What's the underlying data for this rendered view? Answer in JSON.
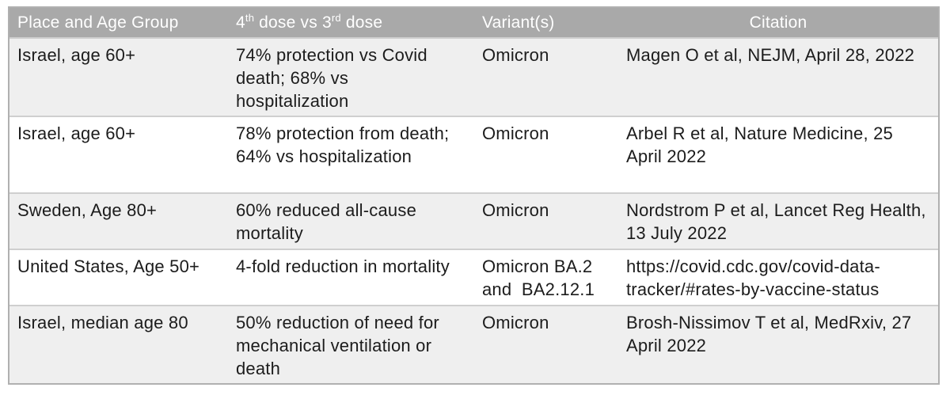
{
  "colors": {
    "header_bg": "#a9a9a9",
    "header_text": "#ffffff",
    "row_stripe": "#efefef",
    "row_plain": "#ffffff",
    "body_text": "#1c1c1c",
    "border": "#b0b0b0",
    "row_divider": "#cfcfcf"
  },
  "table": {
    "headers": {
      "place": "Place and Age Group",
      "dose_base1": "4",
      "dose_sup1": "th",
      "dose_mid": " dose vs 3",
      "dose_sup2": "rd",
      "dose_end": " dose",
      "variants": "Variant(s)",
      "citation": "Citation"
    },
    "rows": [
      {
        "place": "Israel, age 60+",
        "result": "74% protection vs Covid death; 68% vs hospitalization",
        "variant": "Omicron",
        "citation": "Magen O et al, NEJM, April 28, 2022"
      },
      {
        "place": "Israel, age 60+",
        "result": "78% protection from death; 64% vs hospitalization",
        "variant": "Omicron",
        "citation": "Arbel R et al, Nature Medicine, 25 April 2022"
      },
      {
        "place": "Sweden, Age 80+",
        "result": "60% reduced all-cause mortality",
        "variant": "Omicron",
        "citation": "Nordstrom P et al, Lancet Reg Health, 13 July 2022"
      },
      {
        "place": "United States, Age 50+",
        "result": "4-fold reduction in mortality",
        "variant": "Omicron BA.2 and  BA2.12.1",
        "citation": "https://covid.cdc.gov/covid-data-tracker/#rates-by-vaccine-status"
      },
      {
        "place": "Israel, median age 80",
        "result": "50% reduction of need for mechanical ventilation or death",
        "variant": "Omicron",
        "citation": "Brosh-Nissimov T et al, MedRxiv, 27 April 2022"
      }
    ]
  }
}
